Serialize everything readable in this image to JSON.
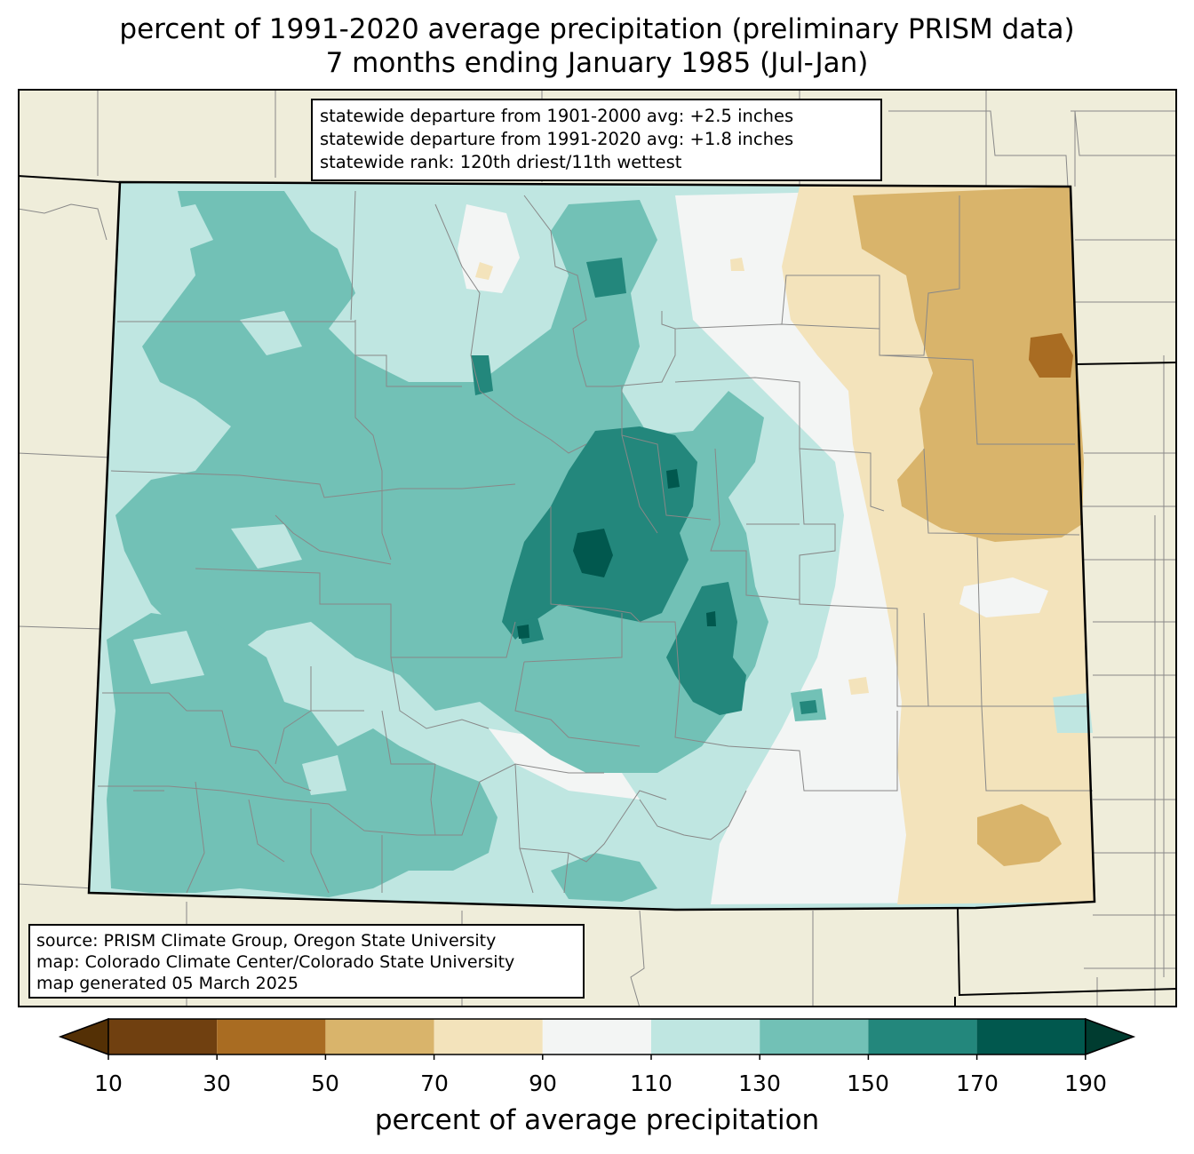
{
  "title": {
    "line1": "percent of 1991-2020 average precipitation (preliminary PRISM data)",
    "line2": "7 months ending January 1985 (Jul-Jan)"
  },
  "stats": {
    "line1": "statewide departure from 1901-2000 avg: +2.5 inches",
    "line2": "statewide departure from 1991-2020 avg: +1.8 inches",
    "line3": "statewide rank: 120th driest/11th wettest"
  },
  "source": {
    "line1": "source: PRISM Climate Group, Oregon State University",
    "line2": "map: Colorado Climate Center/Colorado State University",
    "line3": "map generated 05 March 2025"
  },
  "colorbar": {
    "label": "percent of average precipitation",
    "ticks": [
      "10",
      "30",
      "50",
      "70",
      "90",
      "110",
      "130",
      "150",
      "170",
      "190"
    ],
    "bins": [
      {
        "range": "<10",
        "color": "#543005"
      },
      {
        "range": "10-30",
        "color": "#704010"
      },
      {
        "range": "30-50",
        "color": "#a96c22"
      },
      {
        "range": "50-70",
        "color": "#d9b46b"
      },
      {
        "range": "70-90",
        "color": "#f3e3bb"
      },
      {
        "range": "90-110",
        "color": "#f3f5f4"
      },
      {
        "range": "110-130",
        "color": "#bfe6e1"
      },
      {
        "range": "130-150",
        "color": "#72c1b6"
      },
      {
        "range": "150-170",
        "color": "#23877c"
      },
      {
        "range": "170-190",
        "color": "#01584e"
      },
      {
        "range": ">190",
        "color": "#003c30"
      }
    ]
  },
  "colors": {
    "land": "#efedda",
    "state_border": "#000000",
    "county_border": "#888888"
  }
}
